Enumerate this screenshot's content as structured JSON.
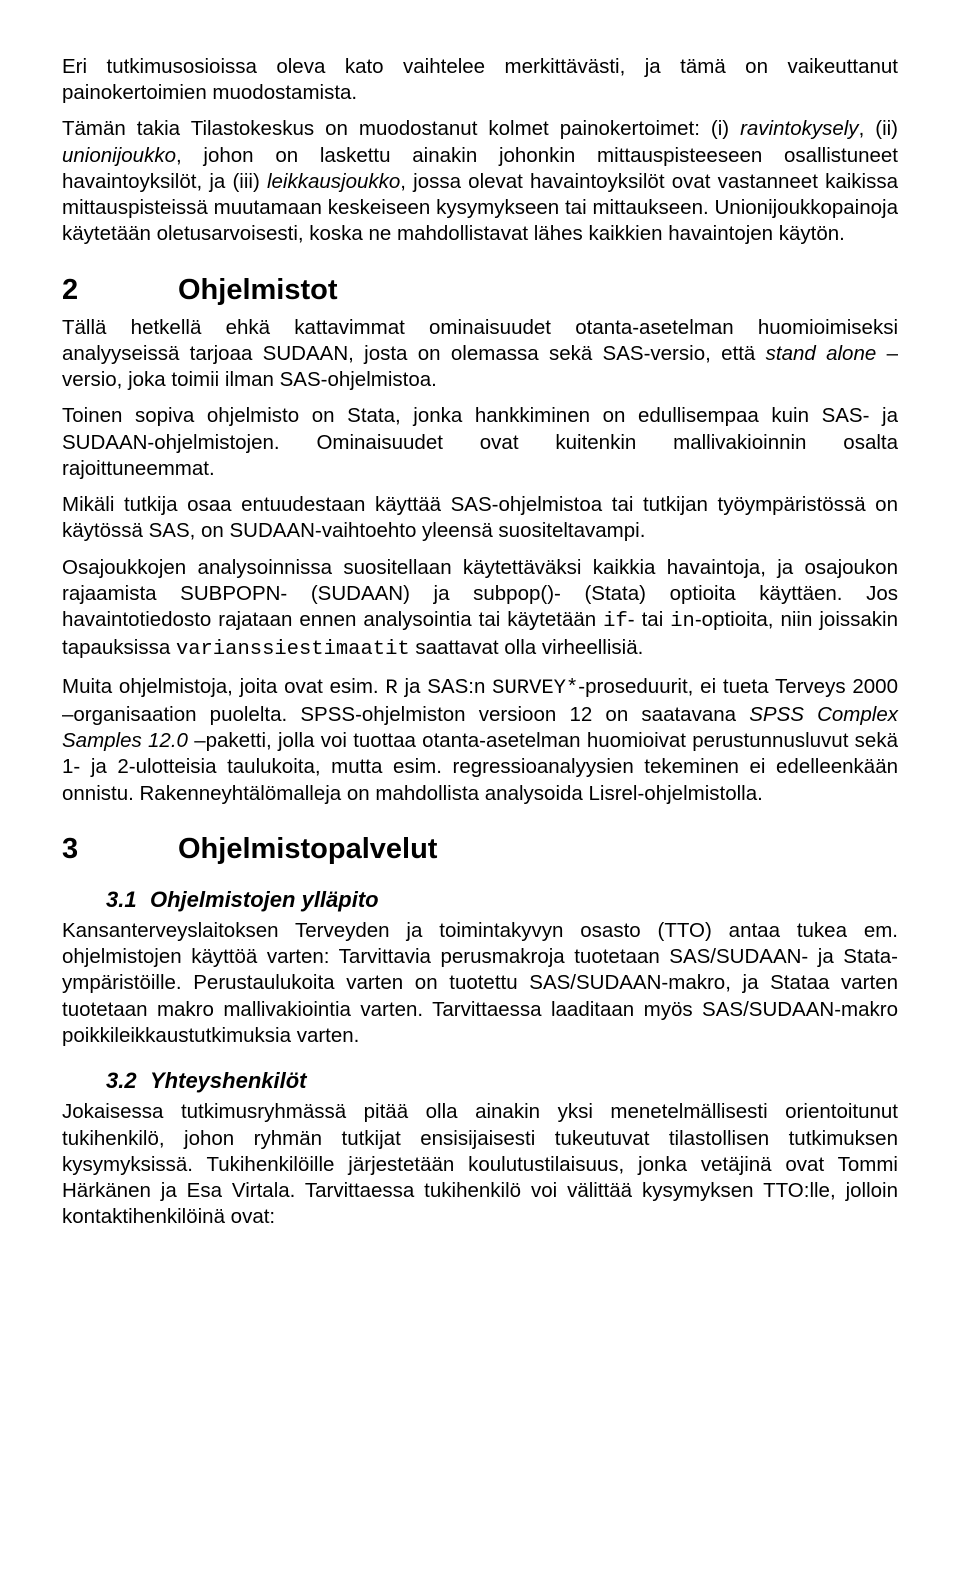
{
  "p1": "Eri tutkimusosioissa oleva kato vaihtelee merkittävästi, ja tämä on vaikeuttanut painokertoimien muodostamista.",
  "p2a": "Tämän takia Tilastokeskus on muodostanut kolmet painokertoimet: (i) ",
  "p2i1": "ravintokysely",
  "p2b": ", (ii) ",
  "p2i2": "unionijoukko",
  "p2c": ", johon on laskettu ainakin johonkin mittauspisteeseen osallistuneet havaintoyksilöt, ja (iii) ",
  "p2i3": "leikkausjoukko",
  "p2d": ", jossa olevat havaintoyksilöt ovat vastanneet kaikissa mittauspisteissä muutamaan keskeiseen kysymykseen tai mittaukseen. Unionijoukkopainoja käytetään oletusarvoisesti, koska ne mahdollistavat lähes kaikkien havaintojen käytön.",
  "h2num": "2",
  "h2title": "Ohjelmistot",
  "p3a": "Tällä hetkellä ehkä kattavimmat ominaisuudet otanta-asetelman huomioimiseksi analyyseissä tarjoaa SUDAAN, josta on olemassa sekä SAS-versio, että ",
  "p3i1": "stand alone",
  "p3b": " –versio, joka toimii ilman SAS-ohjelmistoa.",
  "p4": "Toinen sopiva ohjelmisto on Stata, jonka hankkiminen on edullisempaa kuin SAS- ja SUDAAN-ohjelmistojen. Ominaisuudet ovat kuitenkin mallivakioinnin osalta rajoittuneemmat.",
  "p5": "Mikäli tutkija osaa entuudestaan käyttää SAS-ohjelmistoa tai tutkijan työympäristössä on käytössä SAS, on SUDAAN-vaihtoehto yleensä suositeltavampi.",
  "p6a": "Osajoukkojen analysoinnissa suositellaan käytettäväksi kaikkia havaintoja, ja osajoukon rajaamista SUBPOPN- (SUDAAN) ja subpop()- (Stata) optioita käyttäen. Jos havaintotiedosto rajataan ennen analysointia tai käytetään ",
  "p6m1": "if",
  "p6b": "- tai ",
  "p6m2": "in",
  "p6c": "-optioita, niin joissakin tapauksissa ",
  "p6m3": "varianssiestimaatit",
  "p6d": " saattavat olla virheellisiä.",
  "p7a": "Muita ohjelmistoja, joita ovat esim. ",
  "p7m1": "R",
  "p7b": " ja SAS:n ",
  "p7m2": "SURVEY*",
  "p7c": "-proseduurit, ei tueta Terveys 2000 –organisaation puolelta. SPSS-ohjelmiston versioon 12 on saatavana ",
  "p7i1": "SPSS Complex Samples 12.0",
  "p7d": " –paketti, jolla voi tuottaa otanta-asetelman huomioivat perustunnusluvut sekä 1- ja 2-ulotteisia taulukoita, mutta esim. regressioanalyysien tekeminen ei edelleenkään onnistu. Rakenneyhtälömalleja on mahdollista analysoida Lisrel-ohjelmistolla.",
  "h3num": "3",
  "h3title": "Ohjelmistopalvelut",
  "h31num": "3.1",
  "h31title": "Ohjelmistojen ylläpito",
  "p8": "Kansanterveyslaitoksen Terveyden ja toimintakyvyn osasto (TTO) antaa tukea em. ohjelmistojen käyttöä varten: Tarvittavia perusmakroja tuotetaan SAS/SUDAAN- ja Stata-ympäristöille. Perustaulukoita varten on tuotettu SAS/SUDAAN-makro, ja Stataa varten tuotetaan makro mallivakiointia varten. Tarvittaessa laaditaan myös SAS/SUDAAN-makro poikkileikkaustutkimuksia varten.",
  "h32num": "3.2",
  "h32title": "Yhteyshenkilöt",
  "p9": "Jokaisessa tutkimusryhmässä pitää olla ainakin yksi menetelmällisesti orientoitunut tukihenkilö, johon ryhmän tutkijat ensisijaisesti tukeutuvat tilastollisen tutkimuksen kysymyksissä. Tukihenkilöille järjestetään koulutustilaisuus, jonka vetäjinä ovat Tommi Härkänen ja Esa Virtala. Tarvittaessa tukihenkilö voi välittää kysymyksen TTO:lle, jolloin kontaktihenkilöinä ovat:"
}
